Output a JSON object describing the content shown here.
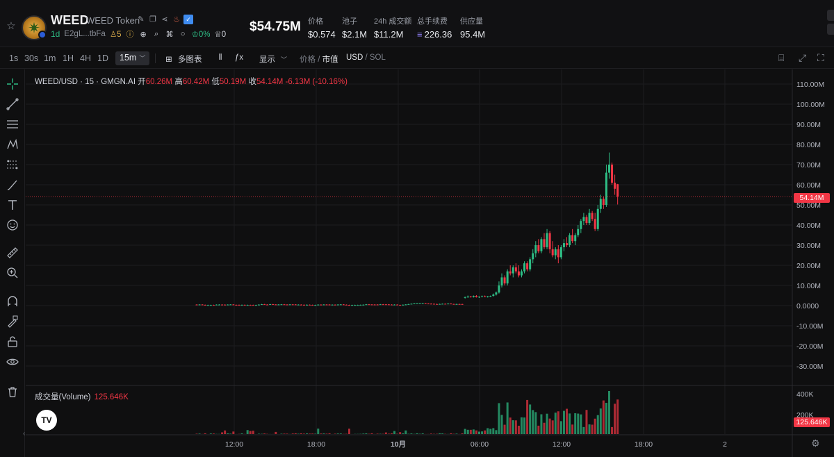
{
  "header": {
    "token_symbol": "WEED",
    "token_name": "WEED Token",
    "age": "1d",
    "address": "E2gL...tbFa",
    "holders": "5",
    "top10_pct": "0%",
    "dev_count": "0",
    "market_cap": "$54.75M",
    "stats": [
      {
        "label": "价格",
        "value": "$0.574"
      },
      {
        "label": "池子",
        "value": "$2.1M"
      },
      {
        "label": "24h 成交额",
        "value": "$11.2M"
      },
      {
        "label": "总手续费",
        "value": "226.36"
      },
      {
        "label": "供应量",
        "value": "95.4M"
      }
    ]
  },
  "toolbar": {
    "timeframes": [
      "1s",
      "30s",
      "1m",
      "1H",
      "4H",
      "1D"
    ],
    "active_timeframe": "15m",
    "multi_chart": "多图表",
    "display": "显示",
    "price_label": "价格",
    "mcap_label": "市值",
    "usd_label": "USD",
    "sol_label": "SOL"
  },
  "legend": {
    "pair": "WEED/USD · 15 · GMGN.AI",
    "open_k": "开",
    "open_v": "60.26M",
    "high_k": "高",
    "high_v": "60.42M",
    "low_k": "低",
    "low_v": "50.19M",
    "close_k": "收",
    "close_v": "54.14M",
    "change": "-6.13M (-10.16%)"
  },
  "volume": {
    "label": "成交量(Volume)",
    "value": "125.646K",
    "tag": "125.646K"
  },
  "price_tag": "54.14M",
  "chart_data": {
    "type": "candlestick",
    "price_axis_ticks": [
      "110.00M",
      "100.00M",
      "90.00M",
      "80.00M",
      "70.00M",
      "60.00M",
      "50.00M",
      "40.00M",
      "30.00M",
      "20.00M",
      "10.00M",
      "0.0000",
      "-10.00M",
      "-20.00M",
      "-30.00M"
    ],
    "volume_axis_ticks": [
      "400K",
      "200K"
    ],
    "time_axis_ticks": [
      "12:00",
      "18:00",
      "10月",
      "06:00",
      "12:00",
      "18:00",
      "2"
    ],
    "last_price": 54.14,
    "colors": {
      "up": "#2ebd85",
      "down": "#f23645"
    },
    "candles_phase1_flat": {
      "count": 95,
      "range": [
        0.3,
        1.2
      ]
    },
    "candles_phase2": [
      [
        4,
        4.5,
        3.5,
        4.2
      ],
      [
        4.2,
        5,
        3.8,
        4.5
      ],
      [
        4.5,
        4.8,
        4,
        4.3
      ],
      [
        4.3,
        5,
        4,
        4.8
      ],
      [
        4.8,
        5.2,
        4,
        4.2
      ],
      [
        4.2,
        4.6,
        3.8,
        4.4
      ],
      [
        4.4,
        5,
        4.2,
        4.6
      ],
      [
        4.6,
        5,
        4.2,
        4.4
      ],
      [
        4.4,
        4.8,
        4,
        4.6
      ],
      [
        4.6,
        5,
        4.2,
        4.8
      ],
      [
        4.8,
        6,
        4.5,
        5.5
      ],
      [
        5.5,
        7,
        5,
        6.5
      ]
    ],
    "candles_phase3": [
      [
        6.5,
        12,
        6,
        10
      ],
      [
        10,
        16,
        9,
        14
      ],
      [
        14,
        15,
        10,
        11
      ],
      [
        11,
        18,
        10,
        17
      ],
      [
        17,
        20,
        15,
        16
      ],
      [
        16,
        20,
        14,
        19
      ],
      [
        19,
        21,
        16,
        17
      ],
      [
        17,
        20,
        14,
        15
      ],
      [
        15,
        18,
        14,
        17
      ],
      [
        17,
        22,
        16,
        21
      ],
      [
        21,
        22,
        17,
        18
      ],
      [
        18,
        24,
        17,
        23
      ],
      [
        23,
        28,
        21,
        26
      ],
      [
        26,
        32,
        24,
        30
      ],
      [
        30,
        33,
        26,
        27
      ],
      [
        27,
        34,
        26,
        33
      ],
      [
        33,
        36,
        28,
        29
      ],
      [
        29,
        38,
        28,
        36
      ],
      [
        36,
        37,
        26,
        28
      ],
      [
        28,
        32,
        24,
        25
      ],
      [
        25,
        29,
        23,
        28
      ],
      [
        28,
        30,
        21,
        24
      ],
      [
        24,
        30,
        23,
        29
      ],
      [
        29,
        33,
        27,
        31
      ],
      [
        31,
        34,
        29,
        30
      ],
      [
        30,
        36,
        29,
        35
      ],
      [
        35,
        38,
        31,
        32
      ],
      [
        32,
        36,
        30,
        35
      ],
      [
        35,
        40,
        34,
        38
      ],
      [
        38,
        43,
        36,
        42
      ],
      [
        42,
        46,
        40,
        44
      ],
      [
        44,
        45,
        40,
        41
      ],
      [
        41,
        48,
        40,
        46
      ],
      [
        46,
        47,
        42,
        43
      ],
      [
        43,
        46,
        37,
        38
      ],
      [
        38,
        50,
        37,
        48
      ],
      [
        48,
        55,
        46,
        53
      ],
      [
        53,
        54,
        48,
        50
      ],
      [
        50,
        70,
        49,
        66
      ],
      [
        66,
        76,
        63,
        70
      ],
      [
        70,
        71,
        60,
        61
      ],
      [
        61,
        65,
        55,
        58
      ],
      [
        60.26,
        60.42,
        50.19,
        54.14
      ]
    ]
  }
}
